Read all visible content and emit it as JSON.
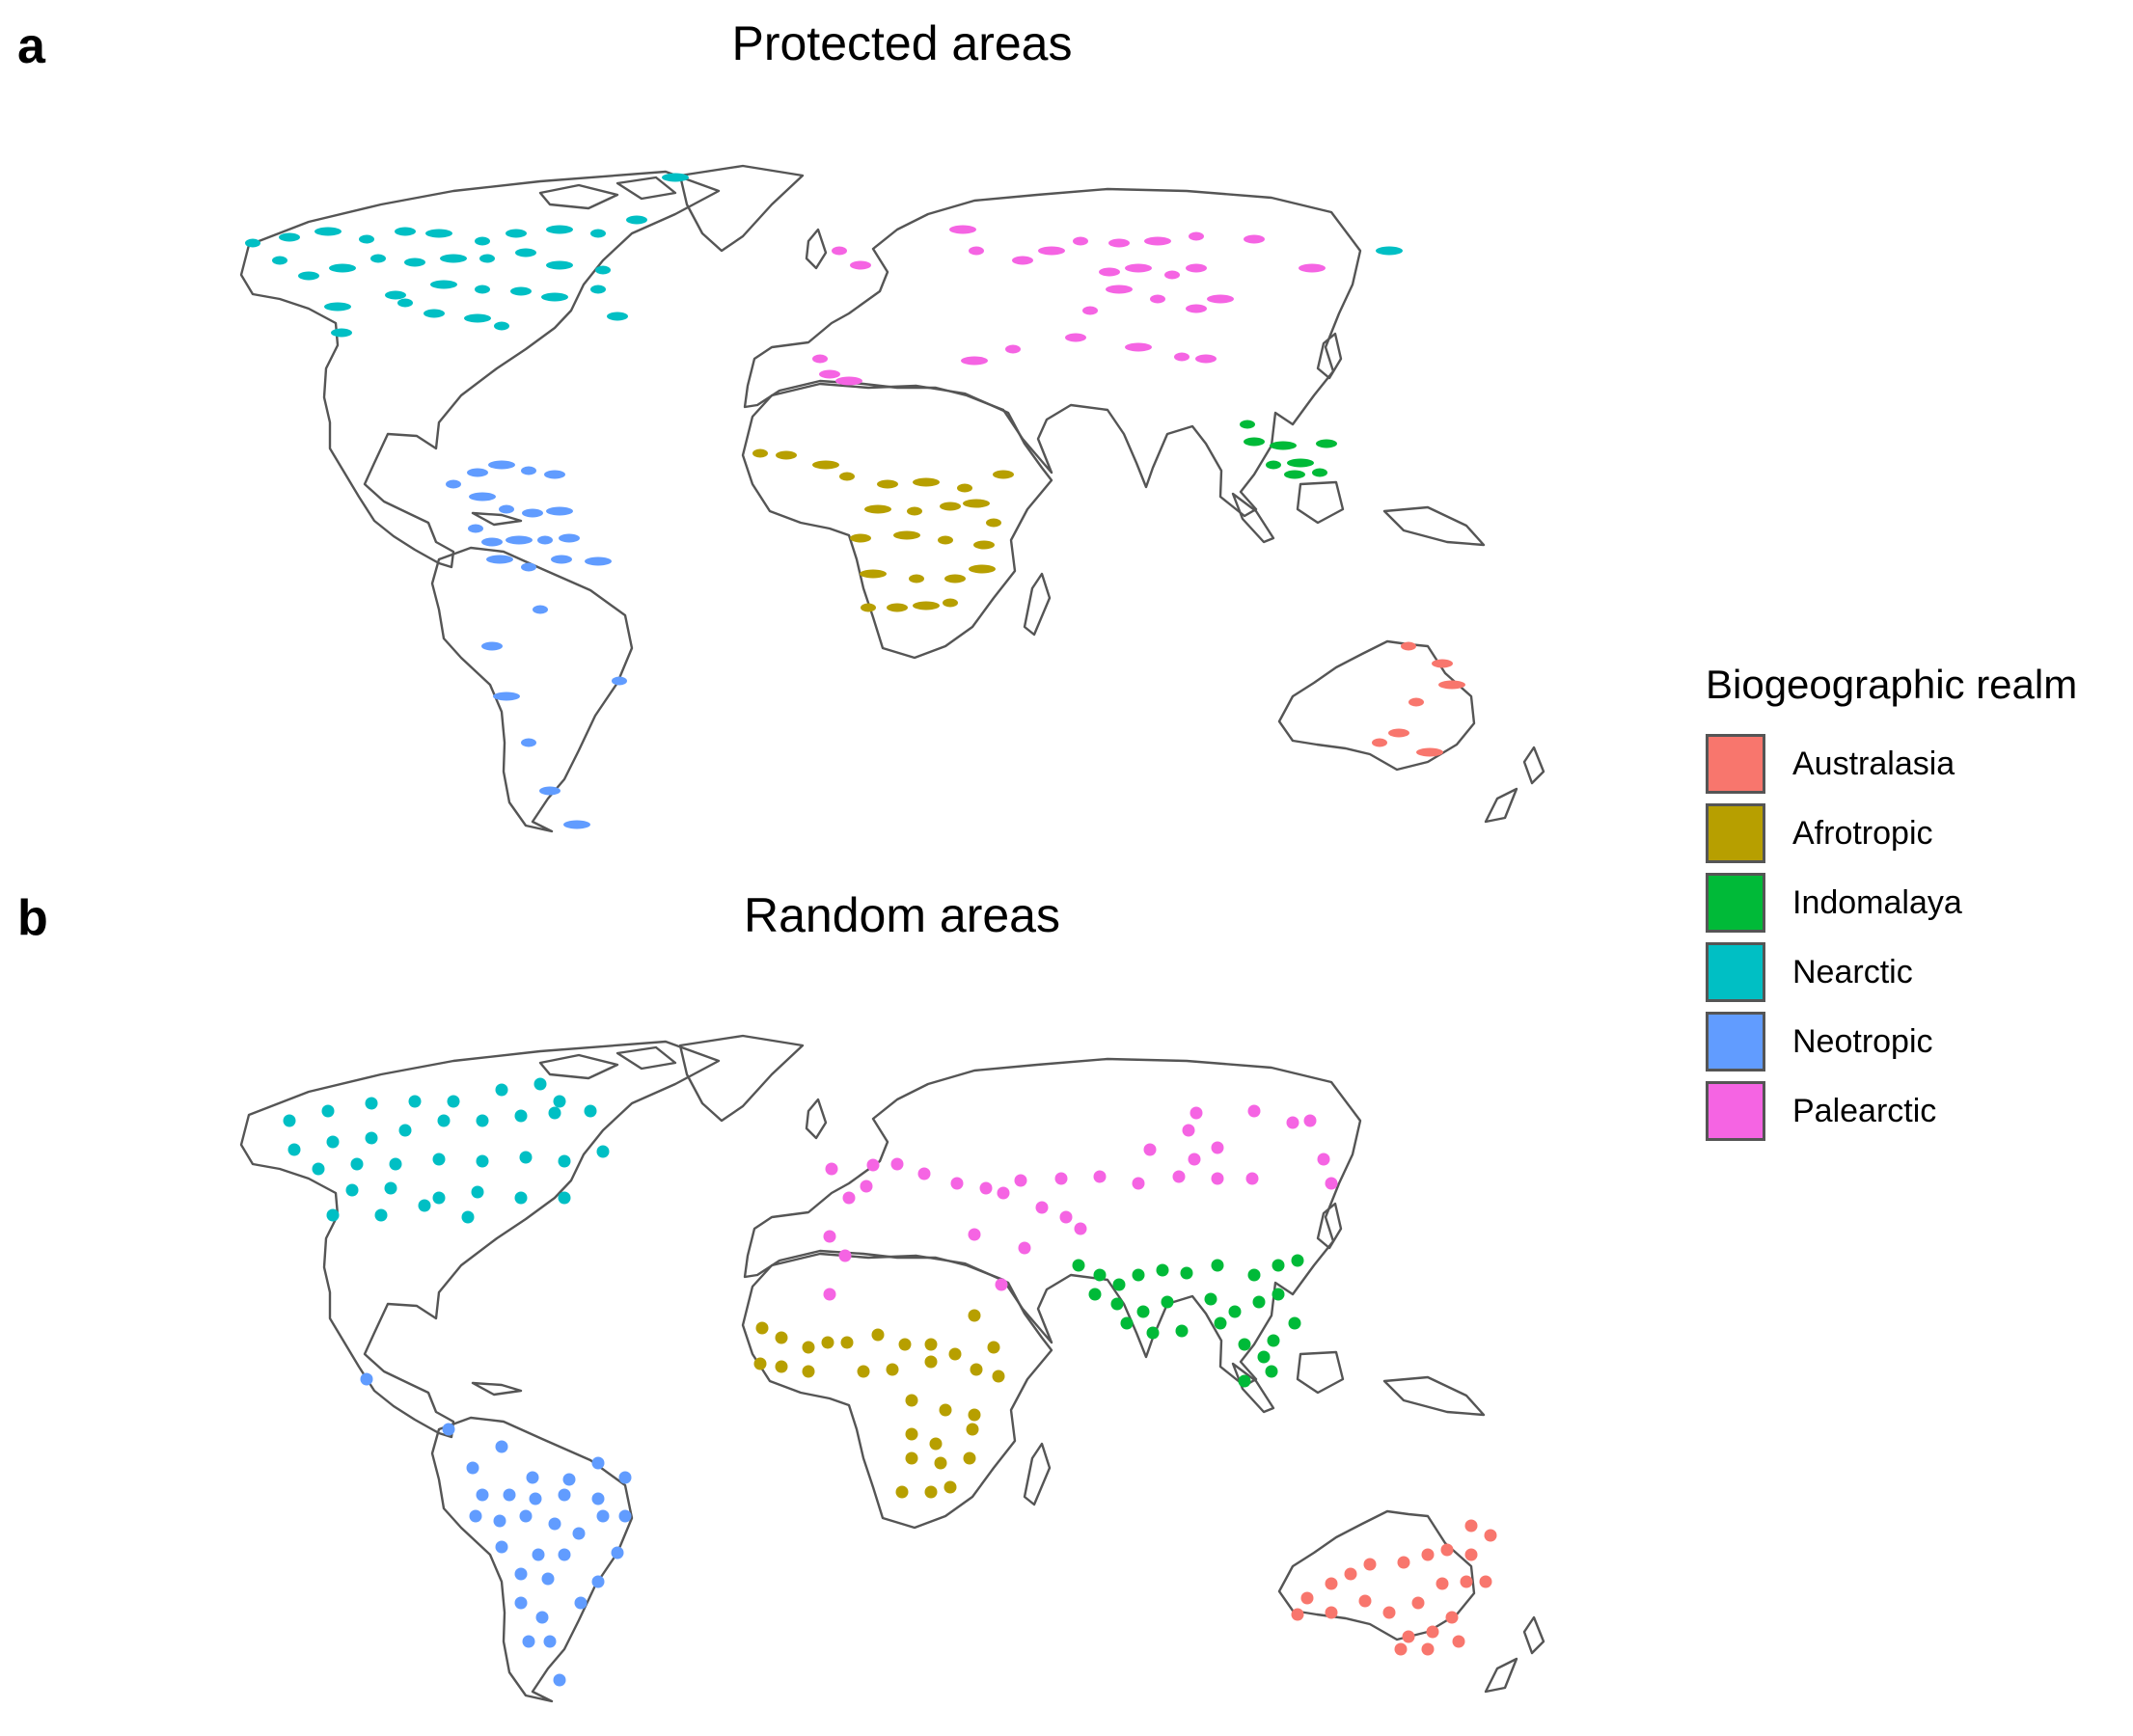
{
  "panels": [
    {
      "letter": "a",
      "title": "Protected areas",
      "mode": "pa"
    },
    {
      "letter": "b",
      "title": "Random areas",
      "mode": "rand"
    }
  ],
  "legend": {
    "title": "Biogeographic realm",
    "items": [
      {
        "key": "australasia",
        "label": "Australasia",
        "color": "#F8766D"
      },
      {
        "key": "afrotropic",
        "label": "Afrotropic",
        "color": "#B79F00"
      },
      {
        "key": "indomalaya",
        "label": "Indomalaya",
        "color": "#00BA38"
      },
      {
        "key": "nearctic",
        "label": "Nearctic",
        "color": "#00BFC4"
      },
      {
        "key": "neotropic",
        "label": "Neotropic",
        "color": "#619CFF"
      },
      {
        "key": "palearctic",
        "label": "Palearctic",
        "color": "#F564E3"
      }
    ]
  },
  "outline_color": "#555555"
}
